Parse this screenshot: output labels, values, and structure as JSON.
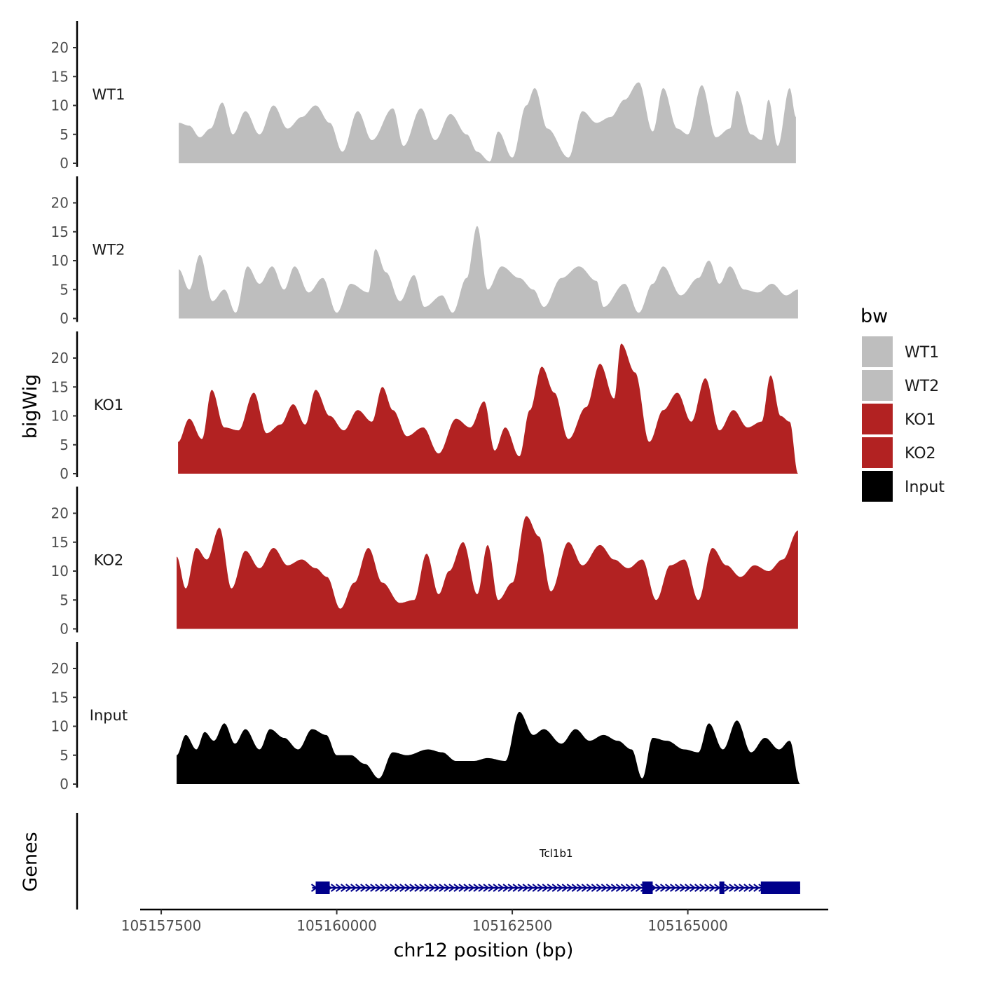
{
  "chart_data": {
    "type": "area",
    "chromosome": "chr12",
    "xlabel": "chr12 position (bp)",
    "ylabel": "bigWig",
    "genes_label": "Genes",
    "xlim": [
      105157200,
      105167000
    ],
    "region": [
      105157750,
      105166550
    ],
    "x_ticks": [
      105157500,
      105160000,
      105162500,
      105165000
    ],
    "x_tick_labels": [
      "105157500",
      "105160000",
      "105162500",
      "105165000"
    ],
    "ylim": [
      0,
      24
    ],
    "y_ticks": [
      0,
      5,
      10,
      15,
      20
    ],
    "y_tick_labels": [
      "0",
      "5",
      "10",
      "15",
      "20"
    ],
    "legend": {
      "title": "bw",
      "entries": [
        {
          "label": "WT1",
          "color": "#bebebe"
        },
        {
          "label": "WT2",
          "color": "#bebebe"
        },
        {
          "label": "KO1",
          "color": "#b22222"
        },
        {
          "label": "KO2",
          "color": "#b22222"
        },
        {
          "label": "Input",
          "color": "#000000"
        }
      ]
    },
    "tracks": [
      {
        "name": "WT1",
        "color": "#bebebe",
        "start": 105157750,
        "end": 105166540,
        "peaks": [
          [
            105157750,
            7
          ],
          [
            105157900,
            6.5
          ],
          [
            105158050,
            4.5
          ],
          [
            105158200,
            6
          ],
          [
            105158370,
            10.5
          ],
          [
            105158520,
            5
          ],
          [
            105158700,
            9
          ],
          [
            105158900,
            5
          ],
          [
            105159100,
            10
          ],
          [
            105159300,
            6
          ],
          [
            105159500,
            8
          ],
          [
            105159700,
            10
          ],
          [
            105159900,
            7
          ],
          [
            105160080,
            2
          ],
          [
            105160300,
            9
          ],
          [
            105160500,
            4
          ],
          [
            105160800,
            9.5
          ],
          [
            105160950,
            3
          ],
          [
            105161200,
            9.5
          ],
          [
            105161400,
            4
          ],
          [
            105161620,
            8.5
          ],
          [
            105161850,
            5
          ],
          [
            105162000,
            2
          ],
          [
            105162180,
            0.3
          ],
          [
            105162300,
            5.5
          ],
          [
            105162500,
            1
          ],
          [
            105162700,
            10
          ],
          [
            105162820,
            13
          ],
          [
            105163000,
            6
          ],
          [
            105163300,
            1
          ],
          [
            105163500,
            9
          ],
          [
            105163700,
            7
          ],
          [
            105163900,
            8
          ],
          [
            105164100,
            11
          ],
          [
            105164300,
            14
          ],
          [
            105164500,
            5.5
          ],
          [
            105164650,
            13
          ],
          [
            105164850,
            6
          ],
          [
            105165000,
            5
          ],
          [
            105165200,
            13.5
          ],
          [
            105165400,
            4.5
          ],
          [
            105165600,
            6
          ],
          [
            105165700,
            12.5
          ],
          [
            105165900,
            5
          ],
          [
            105166050,
            4
          ],
          [
            105166150,
            11
          ],
          [
            105166280,
            3
          ],
          [
            105166450,
            13
          ],
          [
            105166540,
            8
          ]
        ]
      },
      {
        "name": "WT2",
        "color": "#bebebe",
        "start": 105157750,
        "end": 105166570,
        "peaks": [
          [
            105157750,
            8.5
          ],
          [
            105157900,
            5
          ],
          [
            105158050,
            11
          ],
          [
            105158230,
            3
          ],
          [
            105158400,
            5
          ],
          [
            105158560,
            1
          ],
          [
            105158730,
            9
          ],
          [
            105158900,
            6
          ],
          [
            105159080,
            9
          ],
          [
            105159250,
            5
          ],
          [
            105159400,
            9
          ],
          [
            105159600,
            4.5
          ],
          [
            105159800,
            7
          ],
          [
            105160000,
            1
          ],
          [
            105160200,
            6
          ],
          [
            105160450,
            4.5
          ],
          [
            105160550,
            12
          ],
          [
            105160700,
            8
          ],
          [
            105160900,
            3
          ],
          [
            105161100,
            7.5
          ],
          [
            105161250,
            2
          ],
          [
            105161500,
            4
          ],
          [
            105161650,
            1
          ],
          [
            105161850,
            7
          ],
          [
            105162000,
            16
          ],
          [
            105162150,
            5
          ],
          [
            105162350,
            9
          ],
          [
            105162600,
            7
          ],
          [
            105162800,
            5
          ],
          [
            105162950,
            2
          ],
          [
            105163200,
            7
          ],
          [
            105163450,
            9
          ],
          [
            105163700,
            6.5
          ],
          [
            105163800,
            2
          ],
          [
            105164100,
            6
          ],
          [
            105164300,
            1
          ],
          [
            105164500,
            6
          ],
          [
            105164650,
            9
          ],
          [
            105164900,
            4
          ],
          [
            105165150,
            7
          ],
          [
            105165300,
            10
          ],
          [
            105165450,
            6
          ],
          [
            105165600,
            9
          ],
          [
            105165800,
            5
          ],
          [
            105166000,
            4.5
          ],
          [
            105166200,
            6
          ],
          [
            105166400,
            4
          ],
          [
            105166570,
            5
          ]
        ]
      },
      {
        "name": "KO1",
        "color": "#b22222",
        "start": 105157740,
        "end": 105166570,
        "peaks": [
          [
            105157740,
            5.5
          ],
          [
            105157900,
            9.5
          ],
          [
            105158080,
            6
          ],
          [
            105158220,
            14.5
          ],
          [
            105158400,
            8
          ],
          [
            105158600,
            7.5
          ],
          [
            105158820,
            14
          ],
          [
            105159000,
            7
          ],
          [
            105159200,
            8.5
          ],
          [
            105159380,
            12
          ],
          [
            105159550,
            8.5
          ],
          [
            105159700,
            14.5
          ],
          [
            105159900,
            10
          ],
          [
            105160100,
            7.5
          ],
          [
            105160300,
            11
          ],
          [
            105160500,
            9
          ],
          [
            105160650,
            15
          ],
          [
            105160800,
            11
          ],
          [
            105161000,
            6.5
          ],
          [
            105161230,
            8
          ],
          [
            105161450,
            3.5
          ],
          [
            105161700,
            9.5
          ],
          [
            105161900,
            8
          ],
          [
            105162100,
            12.5
          ],
          [
            105162250,
            4
          ],
          [
            105162400,
            8
          ],
          [
            105162600,
            3
          ],
          [
            105162750,
            11
          ],
          [
            105162920,
            18.5
          ],
          [
            105163100,
            14
          ],
          [
            105163300,
            6
          ],
          [
            105163550,
            11.5
          ],
          [
            105163750,
            19
          ],
          [
            105163950,
            13
          ],
          [
            105164050,
            22.5
          ],
          [
            105164250,
            17.5
          ],
          [
            105164450,
            5.5
          ],
          [
            105164650,
            11
          ],
          [
            105164850,
            14
          ],
          [
            105165050,
            9
          ],
          [
            105165250,
            16.5
          ],
          [
            105165450,
            7.5
          ],
          [
            105165650,
            11
          ],
          [
            105165850,
            8
          ],
          [
            105166050,
            9
          ],
          [
            105166180,
            17
          ],
          [
            105166320,
            10
          ],
          [
            105166450,
            9
          ],
          [
            105166570,
            0
          ]
        ]
      },
      {
        "name": "KO2",
        "color": "#b22222",
        "start": 105157720,
        "end": 105166570,
        "peaks": [
          [
            105157720,
            12.5
          ],
          [
            105157850,
            7
          ],
          [
            105158000,
            14
          ],
          [
            105158150,
            12
          ],
          [
            105158330,
            17.5
          ],
          [
            105158500,
            7
          ],
          [
            105158700,
            13.5
          ],
          [
            105158900,
            10.5
          ],
          [
            105159100,
            14
          ],
          [
            105159300,
            11
          ],
          [
            105159500,
            12
          ],
          [
            105159700,
            10.5
          ],
          [
            105159860,
            9
          ],
          [
            105160050,
            3.5
          ],
          [
            105160250,
            8
          ],
          [
            105160450,
            14
          ],
          [
            105160650,
            8
          ],
          [
            105160900,
            4.5
          ],
          [
            105161100,
            5
          ],
          [
            105161280,
            13
          ],
          [
            105161450,
            6
          ],
          [
            105161600,
            10
          ],
          [
            105161800,
            15
          ],
          [
            105162000,
            6
          ],
          [
            105162150,
            14.5
          ],
          [
            105162300,
            5
          ],
          [
            105162500,
            8
          ],
          [
            105162700,
            19.5
          ],
          [
            105162880,
            16
          ],
          [
            105163050,
            6.5
          ],
          [
            105163300,
            15
          ],
          [
            105163500,
            11
          ],
          [
            105163750,
            14.5
          ],
          [
            105163950,
            12
          ],
          [
            105164150,
            10.5
          ],
          [
            105164350,
            12
          ],
          [
            105164550,
            5
          ],
          [
            105164750,
            11
          ],
          [
            105164950,
            12
          ],
          [
            105165150,
            5
          ],
          [
            105165350,
            14
          ],
          [
            105165550,
            11
          ],
          [
            105165750,
            9
          ],
          [
            105165950,
            11
          ],
          [
            105166150,
            10
          ],
          [
            105166350,
            12
          ],
          [
            105166570,
            17
          ]
        ]
      },
      {
        "name": "Input",
        "color": "#000000",
        "start": 105157720,
        "end": 105166600,
        "peaks": [
          [
            105157720,
            5
          ],
          [
            105157850,
            8.5
          ],
          [
            105158000,
            6
          ],
          [
            105158120,
            9
          ],
          [
            105158250,
            7.5
          ],
          [
            105158400,
            10.5
          ],
          [
            105158550,
            7
          ],
          [
            105158700,
            9.5
          ],
          [
            105158900,
            6
          ],
          [
            105159050,
            9.5
          ],
          [
            105159250,
            8
          ],
          [
            105159450,
            6
          ],
          [
            105159650,
            9.5
          ],
          [
            105159850,
            8.5
          ],
          [
            105160000,
            5
          ],
          [
            105160200,
            5
          ],
          [
            105160400,
            3.5
          ],
          [
            105160600,
            1
          ],
          [
            105160800,
            5.5
          ],
          [
            105161000,
            5
          ],
          [
            105161300,
            6
          ],
          [
            105161500,
            5.5
          ],
          [
            105161700,
            4
          ],
          [
            105161950,
            4
          ],
          [
            105162150,
            4.5
          ],
          [
            105162400,
            4
          ],
          [
            105162600,
            12.5
          ],
          [
            105162800,
            8.5
          ],
          [
            105162950,
            9.5
          ],
          [
            105163200,
            7
          ],
          [
            105163400,
            9.5
          ],
          [
            105163600,
            7.5
          ],
          [
            105163800,
            8.5
          ],
          [
            105164000,
            7.5
          ],
          [
            105164200,
            6
          ],
          [
            105164350,
            1
          ],
          [
            105164500,
            8
          ],
          [
            105164700,
            7.5
          ],
          [
            105164950,
            6
          ],
          [
            105165150,
            5.5
          ],
          [
            105165300,
            10.5
          ],
          [
            105165500,
            6
          ],
          [
            105165700,
            11
          ],
          [
            105165900,
            5.5
          ],
          [
            105166100,
            8
          ],
          [
            105166300,
            6
          ],
          [
            105166450,
            7.5
          ],
          [
            105166600,
            0
          ]
        ]
      }
    ],
    "gene": {
      "name": "Tcl1b1",
      "strand": "+",
      "start": 105159650,
      "end": 105166600,
      "exons": [
        [
          105159700,
          105159900
        ],
        [
          105164350,
          105164500
        ],
        [
          105165450,
          105165520
        ],
        [
          105166040,
          105166600
        ]
      ]
    }
  }
}
